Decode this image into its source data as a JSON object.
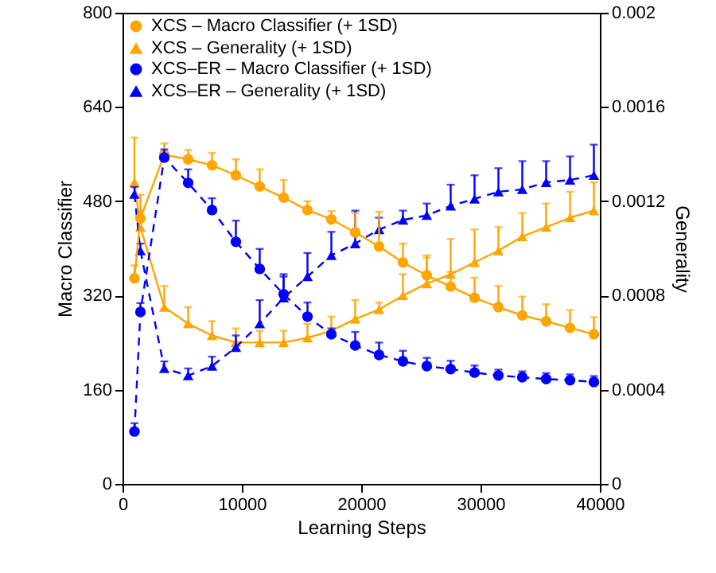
{
  "chart_data": {
    "type": "line",
    "x": [
      1000,
      1500,
      3500,
      5500,
      7500,
      9500,
      11500,
      13500,
      15500,
      17500,
      19500,
      21500,
      23500,
      25500,
      27500,
      29500,
      31500,
      33500,
      35500,
      37500,
      39500
    ],
    "xlabel": "Learning Steps",
    "ylabel": "Macro Classifier",
    "y2label": "Generality",
    "xlim": [
      0,
      40000
    ],
    "xticks": [
      0,
      10000,
      20000,
      30000,
      40000
    ],
    "ylim": [
      0,
      800
    ],
    "yticks": [
      0,
      160,
      320,
      480,
      640,
      800
    ],
    "y2lim": [
      0,
      0.002
    ],
    "y2ticks": [
      0,
      0.0004,
      0.0008,
      0.0012,
      0.0016,
      0.002
    ],
    "legend": "top left",
    "series": [
      {
        "name": "XCS – Macro Classifier (+ 1SD)",
        "color": "#ffa500",
        "marker": "circle",
        "line_style": "solid",
        "values": [
          349,
          451,
          559,
          551,
          541,
          524,
          505,
          486,
          465,
          449,
          427,
          403,
          376,
          354,
          335,
          316,
          300,
          286,
          276,
          265,
          254
        ],
        "errors": [
          [
            349,
            371
          ],
          [
            451,
            491
          ],
          [
            559,
            578
          ],
          [
            551,
            567
          ],
          [
            541,
            562
          ],
          [
            524,
            551
          ],
          [
            505,
            534
          ],
          [
            486,
            516
          ],
          [
            465,
            480
          ],
          [
            449,
            463
          ],
          [
            427,
            460
          ],
          [
            403,
            462
          ],
          [
            376,
            408
          ],
          [
            354,
            384
          ],
          [
            335,
            360
          ],
          [
            316,
            350
          ],
          [
            300,
            336
          ],
          [
            286,
            318
          ],
          [
            276,
            305
          ],
          [
            265,
            295
          ],
          [
            254,
            283
          ]
        ]
      },
      {
        "name": "XCS – Generality (+ 1SD)",
        "color": "#ffa500",
        "marker": "triangle",
        "line_style": "solid",
        "axis": "y2",
        "values": [
          0.00128,
          0.00109,
          0.00075,
          0.00068,
          0.00063,
          0.0006,
          0.0006,
          0.0006,
          0.00062,
          0.00065,
          0.0007,
          0.00074,
          0.0008,
          0.00085,
          0.00089,
          0.00094,
          0.00099,
          0.00105,
          0.00109,
          0.00113,
          0.00116
        ],
        "errors": [
          [
            0.00128,
            0.00147
          ],
          [
            0.00109,
            0.00116
          ],
          [
            0.00075,
            0.00084
          ],
          [
            0.00068,
            0.00075
          ],
          [
            0.00063,
            0.00069
          ],
          [
            0.0006,
            0.00066
          ],
          [
            0.0006,
            0.00065
          ],
          [
            0.0006,
            0.00065
          ],
          [
            0.00062,
            0.00068
          ],
          [
            0.00065,
            0.00071
          ],
          [
            0.0007,
            0.00078
          ],
          [
            0.00074,
            0.00077
          ],
          [
            0.0008,
            0.00089
          ],
          [
            0.00085,
            0.00097
          ],
          [
            0.00089,
            0.00104
          ],
          [
            0.00094,
            0.00108
          ],
          [
            0.00099,
            0.00109
          ],
          [
            0.00105,
            0.00115
          ],
          [
            0.00109,
            0.00119
          ],
          [
            0.00113,
            0.00124
          ],
          [
            0.00116,
            0.00128
          ]
        ]
      },
      {
        "name": "XCS–ER – Macro Classifier (+ 1SD)",
        "color": "#0000ff",
        "marker": "circle",
        "line_style": "dashed",
        "values": [
          89,
          292,
          554,
          511,
          465,
          411,
          365,
          322,
          284,
          254,
          235,
          219,
          208,
          200,
          195,
          189,
          184,
          181,
          178,
          176,
          173
        ],
        "errors": [
          [
            89,
            103
          ],
          [
            292,
            307
          ],
          [
            554,
            568
          ],
          [
            511,
            534
          ],
          [
            465,
            485
          ],
          [
            411,
            447
          ],
          [
            365,
            399
          ],
          [
            322,
            352
          ],
          [
            284,
            308
          ],
          [
            254,
            264
          ],
          [
            235,
            258
          ],
          [
            219,
            240
          ],
          [
            208,
            226
          ],
          [
            200,
            214
          ],
          [
            195,
            209
          ],
          [
            189,
            201
          ],
          [
            184,
            194
          ],
          [
            181,
            191
          ],
          [
            178,
            188
          ],
          [
            176,
            186
          ],
          [
            173,
            183
          ]
        ]
      },
      {
        "name": "XCS–ER – Generality (+ 1SD)",
        "color": "#0000ff",
        "marker": "triangle",
        "line_style": "dashed",
        "axis": "y2",
        "values": [
          0.00123,
          0.00099,
          0.00049,
          0.00046,
          0.0005,
          0.00058,
          0.00068,
          0.00079,
          0.00088,
          0.00097,
          0.00102,
          0.00108,
          0.00112,
          0.00114,
          0.00118,
          0.00121,
          0.00124,
          0.00125,
          0.00128,
          0.00129,
          0.00131
        ],
        "errors": [
          [
            0.00123,
            0.00126
          ],
          [
            0.00099,
            0.00102
          ],
          [
            0.00049,
            0.00052
          ],
          [
            0.00046,
            0.00049
          ],
          [
            0.0005,
            0.00054
          ],
          [
            0.00058,
            0.00063
          ],
          [
            0.00068,
            0.00078
          ],
          [
            0.00079,
            0.00089
          ],
          [
            0.00088,
            0.00098
          ],
          [
            0.00097,
            0.00107
          ],
          [
            0.00102,
            0.00116
          ],
          [
            0.00108,
            0.00113
          ],
          [
            0.00112,
            0.00116
          ],
          [
            0.00114,
            0.00119
          ],
          [
            0.00118,
            0.00127
          ],
          [
            0.00121,
            0.00131
          ],
          [
            0.00124,
            0.00134
          ],
          [
            0.00125,
            0.00137
          ],
          [
            0.00128,
            0.00137
          ],
          [
            0.00129,
            0.00139
          ],
          [
            0.00131,
            0.00144
          ]
        ]
      }
    ]
  }
}
